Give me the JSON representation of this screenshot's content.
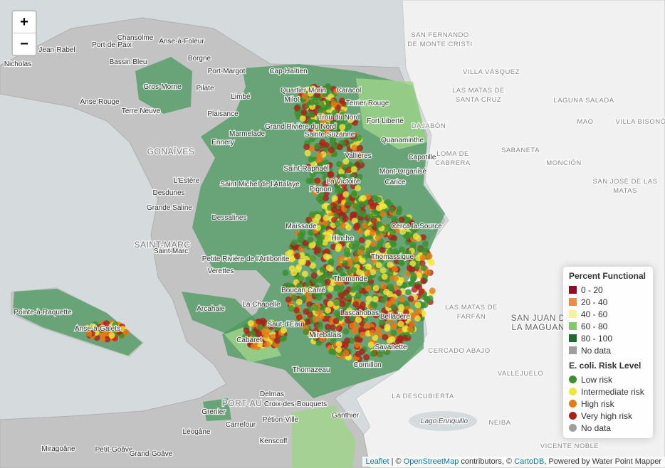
{
  "zoom_controls": {
    "zoom_in": "+",
    "zoom_out": "−"
  },
  "place_labels": [
    "Chansolme",
    "Anse-à-Foleur",
    "Jean-Rabel",
    "Port-de-Paix",
    "Bassin Bleu",
    "Borgne",
    "Nicholas",
    "Port-Margot",
    "Cap-Haïtien",
    "Gros-Morne",
    "Pilate",
    "Anse Rouge",
    "Terre Neuve",
    "Plaisance",
    "Limbé",
    "Quartier Morin",
    "Milot",
    "Caracol",
    "Terrier Rouge",
    "Fort-Liberté",
    "Trou du Nord",
    "Marmelade",
    "Grand Rivière du Nord",
    "Sainte Suzanne",
    "Quanaminthe",
    "Ennery",
    "Vallières",
    "Capotille",
    "Mont-Organisé",
    "Carice",
    "Saint-Raphaël",
    "L'Estère",
    "Saint Michel de l'Attalaye",
    "Pignon",
    "La Victoire",
    "Desdunes",
    "Grande Saline",
    "Dessalines",
    "Maïssade",
    "Hinche",
    "Cerca la Source",
    "Saint-Marc",
    "Petite Rivière de l'Artibonite",
    "Verettes",
    "Thomassique",
    "Thomonde",
    "Boucan Carré",
    "La Chapelle",
    "Arcahaie",
    "Pointe-à-Raquette",
    "Anse-à-Galets",
    "Saut-d'Eau",
    "Lascahobas",
    "Belladère",
    "Mirebalais",
    "Cabaret",
    "Savanette",
    "Thomazeau",
    "Cornillon",
    "Delmas",
    "Croix-des-Bouquets",
    "Grenier",
    "Pétion-Ville",
    "Ganthier",
    "Carrefour",
    "Léogâne",
    "Petit-Goâve",
    "Kenscoff",
    "Miragoâne",
    "Grand-Goâve"
  ],
  "region_labels": [
    [
      "SAN FERNANDO",
      "DE MONTE CRISTI"
    ],
    [
      "VILLA VÁSQUEZ"
    ],
    [
      "LAS MATAS DE",
      "SANTA CRUZ"
    ],
    [
      "LAGUNA SALADA"
    ],
    [
      "MAO"
    ],
    [
      "VILLA BISONÓ"
    ],
    [
      "DAJABÓN"
    ],
    [
      "LOMA DE",
      "CABRERA"
    ],
    [
      "SABANETA"
    ],
    [
      "MONCIÓN"
    ],
    [
      "SAN JOSÉ DE LAS",
      "MATAS"
    ],
    [
      "LAS MATAS DE",
      "FARFÁN"
    ],
    [
      "SAN JUAN DE",
      "LA MAGUANA"
    ],
    [
      "CERCADO ABAJO"
    ],
    [
      "VALLEJUELO"
    ],
    [
      "LA DESCUBIERTA"
    ],
    [
      "NEIBA"
    ],
    [
      "VICENTE NOBLE"
    ],
    [
      "GONAÏVES"
    ],
    [
      "SAINT-MARC"
    ],
    [
      "PORT-AU"
    ],
    [
      "Lago Enriquillo"
    ]
  ],
  "legend": {
    "functional": {
      "title": "Percent Functional",
      "items": [
        {
          "label": "0 - 20",
          "color": "#8e0f24"
        },
        {
          "label": "20 - 40",
          "color": "#f08a4b"
        },
        {
          "label": "40 - 60",
          "color": "#f4f29a"
        },
        {
          "label": "60 - 80",
          "color": "#83c86a"
        },
        {
          "label": "80 - 100",
          "color": "#1e6b32"
        },
        {
          "label": "No data",
          "color": "#9e9e9e"
        }
      ]
    },
    "ecoli": {
      "title": "E. coli. Risk Level",
      "items": [
        {
          "label": "Low risk",
          "color": "#3c8f2e"
        },
        {
          "label": "Intermediate risk",
          "color": "#f2e63c"
        },
        {
          "label": "High risk",
          "color": "#e67a16"
        },
        {
          "label": "Very high risk",
          "color": "#a8221c"
        },
        {
          "label": "No data",
          "color": "#9e9e9e"
        }
      ]
    }
  },
  "attribution": [
    {
      "text": "Leaflet",
      "link": true
    },
    {
      "text": " | © "
    },
    {
      "text": "OpenStreetMap",
      "link": true
    },
    {
      "text": " contributors, © "
    },
    {
      "text": "CartoDB",
      "link": true
    },
    {
      "text": ", Powered by Water Point Mapper"
    }
  ]
}
